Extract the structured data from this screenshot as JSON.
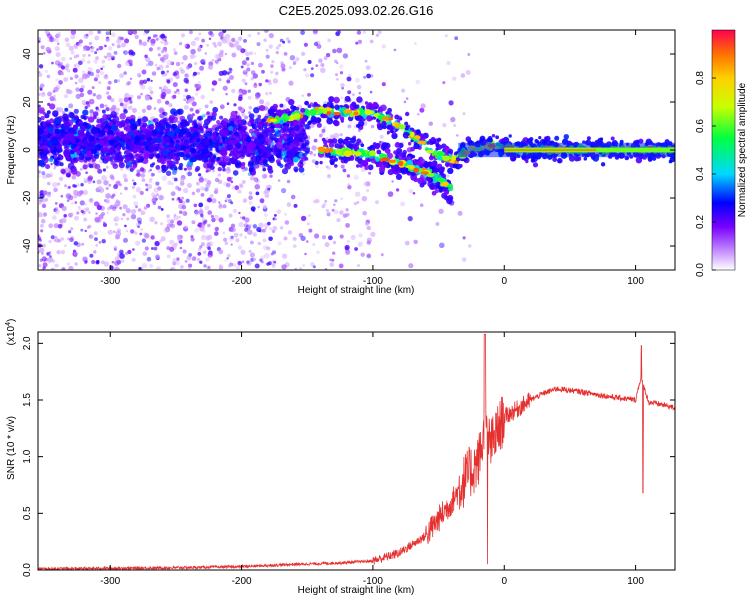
{
  "title": "C2E5.2025.093.02.26.G16",
  "chart_data": [
    {
      "type": "heatmap",
      "xlabel": "Height of straight line (km)",
      "ylabel": "Frequency (Hz)",
      "xlim": [
        -355,
        130
      ],
      "ylim": [
        -50,
        50
      ],
      "xticks": [
        -300,
        -200,
        -100,
        0,
        100
      ],
      "yticks": [
        -40,
        -20,
        0,
        20,
        40
      ],
      "colorbar": {
        "label": "Normalized spectral amplitude",
        "range": [
          0.0,
          1.0
        ],
        "ticks": [
          "0.0",
          "0.2",
          "0.4",
          "0.6",
          "0.8"
        ]
      },
      "ridges": [
        {
          "x": [
            -180,
            -160,
            -140,
            -120,
            -100,
            -90,
            -80,
            -70,
            -60,
            -50,
            -42,
            -35
          ],
          "y": [
            12,
            14,
            16,
            16,
            15,
            13,
            10,
            6,
            2,
            -2,
            -4,
            -4
          ]
        },
        {
          "x": [
            -35,
            -20,
            -10,
            0,
            20,
            60,
            100,
            130
          ],
          "y": [
            -2,
            1,
            2,
            1,
            0,
            0,
            0,
            0
          ]
        },
        {
          "x": [
            -140,
            -120,
            -100,
            -80,
            -60,
            -45,
            -40
          ],
          "y": [
            0,
            -1,
            -2,
            -5,
            -9,
            -14,
            -18
          ]
        },
        {
          "x": [
            -355,
            -330,
            -300,
            -280,
            -250,
            -220,
            -200,
            -180
          ],
          "y": [
            5,
            8,
            3,
            6,
            2,
            4,
            -2,
            2
          ]
        }
      ]
    },
    {
      "type": "line",
      "xlabel": "Height of straight line (km)",
      "ylabel": "SNR (10 * v/v)",
      "y_multiplier": "(x10",
      "y_multiplier_exp": "4",
      "xlim": [
        -355,
        130
      ],
      "ylim": [
        0,
        2.1
      ],
      "xticks": [
        -300,
        -200,
        -100,
        0,
        100
      ],
      "yticks": [
        "0.0",
        "0.5",
        "1.0",
        "1.5",
        "2.0"
      ],
      "color": "#e53030",
      "series": [
        {
          "x": [
            -355,
            -300,
            -250,
            -200,
            -160,
            -130,
            -100,
            -80,
            -60,
            -50,
            -40,
            -30,
            -20,
            -15,
            -10,
            0,
            10,
            20,
            30,
            40,
            60,
            80,
            100,
            104,
            110,
            120,
            130
          ],
          "y": [
            0.01,
            0.015,
            0.02,
            0.03,
            0.05,
            0.06,
            0.08,
            0.15,
            0.3,
            0.45,
            0.6,
            0.8,
            0.95,
            1.2,
            1.1,
            1.35,
            1.42,
            1.5,
            1.56,
            1.6,
            1.57,
            1.53,
            1.5,
            1.7,
            1.48,
            1.46,
            1.43
          ]
        }
      ]
    }
  ]
}
